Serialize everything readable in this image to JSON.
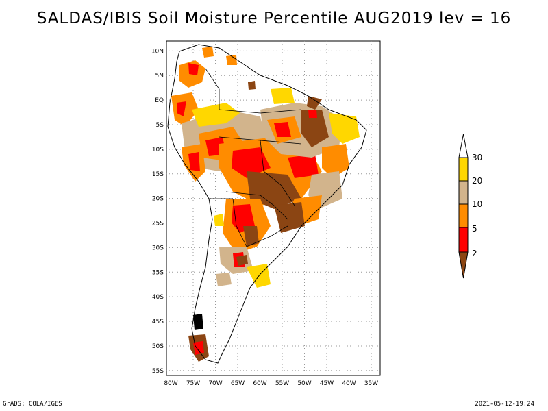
{
  "title": "SALDAS/IBIS Soil Moisture Percentile AUG2019 lev = 16",
  "footer_left": "GrADS: COLA/IGES",
  "footer_right": "2021-05-12-19:24",
  "map": {
    "lon_range": [
      -81,
      -33
    ],
    "lat_range": [
      -56,
      12
    ],
    "lon_ticks": [
      -80,
      -75,
      -70,
      -65,
      -60,
      -55,
      -50,
      -45,
      -40,
      -35
    ],
    "lon_tick_labels": [
      "80W",
      "75W",
      "70W",
      "65W",
      "60W",
      "55W",
      "50W",
      "45W",
      "40W",
      "35W"
    ],
    "lat_ticks": [
      10,
      5,
      0,
      -5,
      -10,
      -15,
      -20,
      -25,
      -30,
      -35,
      -40,
      -45,
      -50,
      -55
    ],
    "lat_tick_labels": [
      "10N",
      "5N",
      "EQ",
      "5S",
      "10S",
      "15S",
      "20S",
      "25S",
      "30S",
      "35S",
      "40S",
      "45S",
      "50S",
      "55S"
    ],
    "grid": "dotted"
  },
  "legend": {
    "levels": [
      "2",
      "5",
      "10",
      "20",
      "30"
    ],
    "colors": {
      "below_2": "#8b4513",
      "2_5": "#ff0000",
      "5_10": "#ff8c00",
      "10_20": "#d2b48c",
      "20_30": "#ffd700",
      "above_30": "#ffffff"
    }
  }
}
